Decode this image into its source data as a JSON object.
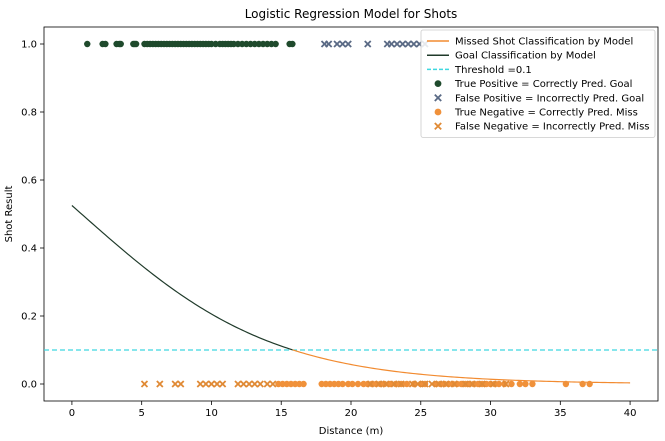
{
  "chart_data": {
    "type": "scatter",
    "title": "Logistic Regression Model for Shots",
    "xlabel": "Distance (m)",
    "ylabel": "Shot Result",
    "xlim": [
      -2,
      42
    ],
    "ylim": [
      -0.05,
      1.05
    ],
    "xticks": [
      0,
      5,
      10,
      15,
      20,
      25,
      30,
      35,
      40
    ],
    "xtick_labels": [
      "0",
      "5",
      "10",
      "15",
      "20",
      "25",
      "30",
      "35",
      "40"
    ],
    "yticks": [
      0.0,
      0.2,
      0.4,
      0.6,
      0.8,
      1.0
    ],
    "ytick_labels": [
      "0.0",
      "0.2",
      "0.4",
      "0.6",
      "0.8",
      "1.0"
    ],
    "threshold": 0.1,
    "model": {
      "intercept": 0.1,
      "slope": -0.145,
      "x_start": 0,
      "x_end": 40,
      "split_x": 15.8
    },
    "colors": {
      "missed_line": "#f28b30",
      "goal_line": "#1f3a2a",
      "threshold": "#3fd8e0",
      "true_positive": "#1f4a2c",
      "false_positive": "#5a6a85",
      "true_negative": "#f0913a",
      "false_negative": "#e08a35"
    },
    "legend": {
      "position": "top-right",
      "entries": [
        {
          "label": "Missed Shot Classification by Model",
          "kind": "line",
          "color_key": "missed_line"
        },
        {
          "label": "Goal Classification by Model",
          "kind": "line",
          "color_key": "goal_line"
        },
        {
          "label": "Threshold =0.1",
          "kind": "dashed",
          "color_key": "threshold"
        },
        {
          "label": "True Positive = Correctly Pred. Goal",
          "kind": "circle",
          "color_key": "true_positive"
        },
        {
          "label": "False Positive = Incorrectly Pred. Goal",
          "kind": "x",
          "color_key": "false_positive"
        },
        {
          "label": "True Negative = Correctly Pred. Miss",
          "kind": "circle",
          "color_key": "true_negative"
        },
        {
          "label": "False Negative = Incorrectly Pred. Miss",
          "kind": "x",
          "color_key": "false_negative"
        }
      ]
    },
    "series": [
      {
        "name": "True Positive = Correctly Pred. Goal",
        "marker": "circle",
        "color_key": "true_positive",
        "y": 1.0,
        "x": [
          1.1,
          2.2,
          2.4,
          3.2,
          3.4,
          3.5,
          4.4,
          4.5,
          4.6,
          5.2,
          5.4,
          5.6,
          5.8,
          6.0,
          6.2,
          6.4,
          6.6,
          6.8,
          7.0,
          7.2,
          7.4,
          7.6,
          7.8,
          8.0,
          8.2,
          8.4,
          8.6,
          8.8,
          9.0,
          9.2,
          9.4,
          9.6,
          9.8,
          10.0,
          10.3,
          10.6,
          10.8,
          11.0,
          11.2,
          11.4,
          11.6,
          11.9,
          12.2,
          12.5,
          12.8,
          13.1,
          13.4,
          13.7,
          14.0,
          14.3,
          14.6,
          15.6,
          15.8
        ]
      },
      {
        "name": "False Positive = Incorrectly Pred. Goal",
        "marker": "x",
        "color_key": "false_positive",
        "y": 1.0,
        "x": [
          18.1,
          18.4,
          19.0,
          19.4,
          19.8,
          21.2,
          22.6,
          22.9,
          23.3,
          23.7,
          24.1,
          24.5,
          24.9,
          25.3
        ]
      },
      {
        "name": "True Negative = Correctly Pred. Miss",
        "marker": "circle",
        "color_key": "true_negative",
        "y": 0.0,
        "x": [
          14.8,
          15.1,
          15.4,
          15.7,
          16.0,
          16.3,
          16.6,
          17.9,
          18.2,
          18.5,
          18.8,
          19.1,
          19.4,
          19.8,
          20.1,
          20.5,
          20.9,
          21.2,
          21.5,
          21.8,
          22.1,
          22.4,
          22.8,
          23.2,
          23.6,
          24.0,
          24.5,
          25.0,
          25.3,
          26.1,
          26.4,
          26.7,
          27.0,
          27.3,
          27.6,
          27.9,
          28.2,
          28.5,
          28.8,
          29.1,
          29.4,
          29.7,
          30.0,
          30.3,
          30.6,
          31.0,
          31.5,
          32.1,
          32.5,
          33.0,
          35.4,
          36.6,
          37.1
        ]
      },
      {
        "name": "False Negative = Incorrectly Pred. Miss",
        "marker": "x",
        "color_key": "false_negative",
        "y": 0.0,
        "x": [
          5.2,
          6.3,
          7.4,
          7.8,
          9.2,
          9.6,
          10.0,
          10.4,
          10.8,
          11.9,
          12.3,
          12.7,
          13.1,
          13.5,
          14.0,
          14.4,
          21.4,
          22.0,
          22.5,
          23.1,
          23.6,
          24.4,
          24.8,
          25.3,
          25.8,
          26.3,
          26.8,
          27.4,
          28.2,
          28.7,
          29.4,
          30.2,
          31.1
        ]
      }
    ]
  }
}
